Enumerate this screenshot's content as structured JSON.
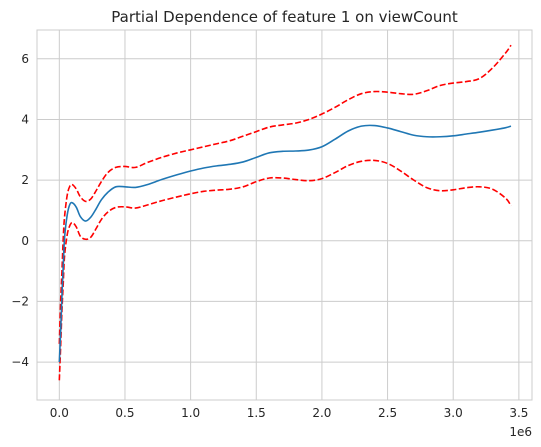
{
  "chart_data": {
    "type": "line",
    "title": "Partial Dependence of feature 1 on viewCount",
    "xlabel": "",
    "ylabel": "",
    "x_scale_label": "1e6",
    "xlim": [
      -0.17,
      3.6
    ],
    "ylim": [
      -5.25,
      6.95
    ],
    "x_ticks": [
      0.0,
      0.5,
      1.0,
      1.5,
      2.0,
      2.5,
      3.0,
      3.5
    ],
    "x_tick_labels": [
      "0.0",
      "0.5",
      "1.0",
      "1.5",
      "2.0",
      "2.5",
      "3.0",
      "3.5"
    ],
    "y_ticks": [
      -4,
      -2,
      0,
      2,
      4,
      6
    ],
    "y_tick_labels": [
      "−4",
      "−2",
      "0",
      "2",
      "4",
      "6"
    ],
    "grid": true,
    "legend": "none",
    "series": [
      {
        "role": "estimate",
        "color": "#1f77b4",
        "style": "solid",
        "x": [
          0.0,
          0.01,
          0.02,
          0.03,
          0.04,
          0.06,
          0.08,
          0.1,
          0.13,
          0.16,
          0.2,
          0.24,
          0.28,
          0.32,
          0.37,
          0.43,
          0.5,
          0.58,
          0.67,
          0.78,
          0.9,
          1.0,
          1.1,
          1.2,
          1.3,
          1.4,
          1.5,
          1.6,
          1.7,
          1.8,
          1.9,
          2.0,
          2.1,
          2.2,
          2.3,
          2.4,
          2.5,
          2.6,
          2.7,
          2.8,
          2.9,
          3.0,
          3.1,
          3.2,
          3.3,
          3.4,
          3.44
        ],
        "y": [
          -4.0,
          -3.0,
          -1.8,
          -0.8,
          0.1,
          0.85,
          1.2,
          1.25,
          1.1,
          0.8,
          0.65,
          0.78,
          1.05,
          1.35,
          1.6,
          1.78,
          1.78,
          1.76,
          1.85,
          2.02,
          2.18,
          2.3,
          2.4,
          2.47,
          2.52,
          2.6,
          2.75,
          2.9,
          2.95,
          2.96,
          2.99,
          3.1,
          3.35,
          3.62,
          3.78,
          3.8,
          3.72,
          3.6,
          3.48,
          3.43,
          3.43,
          3.46,
          3.52,
          3.58,
          3.65,
          3.73,
          3.78
        ]
      },
      {
        "role": "upper-bound",
        "color": "#ff0000",
        "style": "dashed",
        "x": [
          0.0,
          0.01,
          0.02,
          0.03,
          0.04,
          0.06,
          0.08,
          0.1,
          0.13,
          0.16,
          0.2,
          0.24,
          0.28,
          0.32,
          0.37,
          0.43,
          0.5,
          0.58,
          0.67,
          0.78,
          0.9,
          1.0,
          1.1,
          1.2,
          1.3,
          1.4,
          1.5,
          1.6,
          1.7,
          1.8,
          1.9,
          2.0,
          2.1,
          2.2,
          2.3,
          2.4,
          2.5,
          2.6,
          2.7,
          2.8,
          2.9,
          3.0,
          3.1,
          3.2,
          3.3,
          3.4,
          3.44
        ],
        "y": [
          -3.4,
          -2.0,
          -1.0,
          0.1,
          0.8,
          1.5,
          1.8,
          1.85,
          1.7,
          1.45,
          1.3,
          1.38,
          1.65,
          1.95,
          2.25,
          2.42,
          2.45,
          2.42,
          2.58,
          2.75,
          2.9,
          3.0,
          3.1,
          3.2,
          3.3,
          3.45,
          3.6,
          3.75,
          3.82,
          3.88,
          4.0,
          4.18,
          4.4,
          4.65,
          4.85,
          4.92,
          4.9,
          4.85,
          4.83,
          4.95,
          5.12,
          5.2,
          5.25,
          5.35,
          5.7,
          6.2,
          6.45
        ]
      },
      {
        "role": "lower-bound",
        "color": "#ff0000",
        "style": "dashed",
        "x": [
          0.0,
          0.01,
          0.02,
          0.03,
          0.04,
          0.06,
          0.08,
          0.1,
          0.13,
          0.16,
          0.2,
          0.24,
          0.28,
          0.32,
          0.37,
          0.43,
          0.5,
          0.58,
          0.67,
          0.78,
          0.9,
          1.0,
          1.1,
          1.2,
          1.3,
          1.4,
          1.5,
          1.6,
          1.7,
          1.8,
          1.9,
          2.0,
          2.1,
          2.2,
          2.3,
          2.4,
          2.5,
          2.6,
          2.7,
          2.8,
          2.9,
          3.0,
          3.1,
          3.2,
          3.3,
          3.4,
          3.44
        ],
        "y": [
          -4.6,
          -3.5,
          -2.3,
          -1.4,
          -0.5,
          0.2,
          0.5,
          0.6,
          0.45,
          0.15,
          0.05,
          0.12,
          0.4,
          0.7,
          0.95,
          1.1,
          1.12,
          1.08,
          1.18,
          1.32,
          1.45,
          1.55,
          1.63,
          1.67,
          1.7,
          1.78,
          1.95,
          2.07,
          2.07,
          2.02,
          1.98,
          2.05,
          2.25,
          2.48,
          2.62,
          2.65,
          2.55,
          2.3,
          2.0,
          1.75,
          1.65,
          1.68,
          1.75,
          1.78,
          1.7,
          1.4,
          1.15
        ]
      }
    ]
  }
}
